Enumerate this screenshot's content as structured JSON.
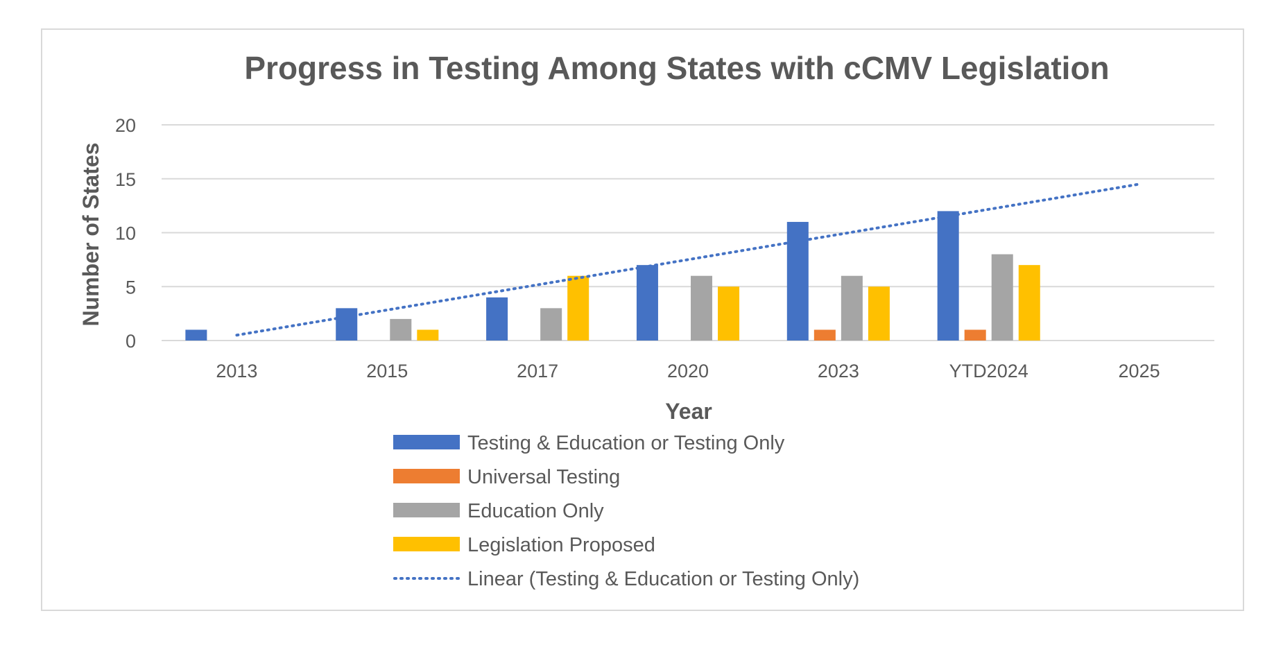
{
  "chart_data": {
    "type": "bar",
    "title": "Progress in Testing Among States with cCMV Legislation",
    "xlabel": "Year",
    "ylabel": "Number of States",
    "ylim": [
      0,
      20
    ],
    "yticks": [
      0,
      5,
      10,
      15,
      20
    ],
    "grid": true,
    "legend_position": "bottom",
    "categories": [
      "2013",
      "2015",
      "2017",
      "2020",
      "2023",
      "YTD2024",
      "2025"
    ],
    "series": [
      {
        "name": "Testing & Education or Testing Only",
        "color": "#4472C4",
        "values": [
          1,
          3,
          4,
          7,
          11,
          12,
          0
        ]
      },
      {
        "name": "Universal Testing",
        "color": "#ED7D31",
        "values": [
          0,
          0,
          0,
          0,
          1,
          1,
          0
        ]
      },
      {
        "name": "Education Only",
        "color": "#A5A5A5",
        "values": [
          0,
          2,
          3,
          6,
          6,
          8,
          0
        ]
      },
      {
        "name": "Legislation Proposed",
        "color": "#FFC000",
        "values": [
          0,
          1,
          6,
          5,
          5,
          7,
          0
        ]
      }
    ],
    "trendline": {
      "name": "Linear (Testing & Education or Testing Only)",
      "type": "linear",
      "color": "#4472C4",
      "start_value": 0.5,
      "end_value": 14.5
    }
  }
}
